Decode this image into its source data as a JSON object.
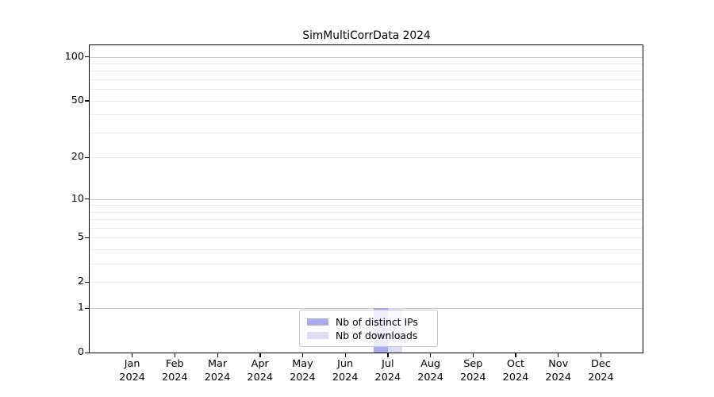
{
  "chart_data": {
    "type": "bar",
    "title": "SimMultiCorrData 2024",
    "months": [
      "Jan",
      "Feb",
      "Mar",
      "Apr",
      "May",
      "Jun",
      "Jul",
      "Aug",
      "Sep",
      "Oct",
      "Nov",
      "Dec"
    ],
    "year_label": "2024",
    "series": [
      {
        "name": "Nb of distinct IPs",
        "color": "#aaaaee",
        "values": [
          0,
          0,
          0,
          0,
          0,
          0,
          1,
          0,
          0,
          0,
          0,
          0
        ]
      },
      {
        "name": "Nb of downloads",
        "color": "#dcdcf8",
        "values": [
          0,
          0,
          0,
          0,
          0,
          0,
          1,
          0,
          0,
          0,
          0,
          0
        ]
      }
    ],
    "xlabel": "",
    "ylabel": "",
    "yscale": "log1p",
    "ylim": [
      0,
      120
    ],
    "ytick_values": [
      0,
      1,
      2,
      5,
      10,
      20,
      50,
      100
    ],
    "grid": true,
    "grid_major_values": [
      1,
      10,
      100
    ],
    "grid_minor_values": [
      2,
      3,
      4,
      5,
      6,
      7,
      8,
      9,
      20,
      30,
      40,
      50,
      60,
      70,
      80,
      90
    ],
    "legend_position": "lower center",
    "colors": {
      "spine": "#000000",
      "grid_major": "#c9c9c9",
      "grid_minor": "#ebebeb",
      "text": "#000000",
      "legend_border": "#cbcbcb"
    }
  }
}
